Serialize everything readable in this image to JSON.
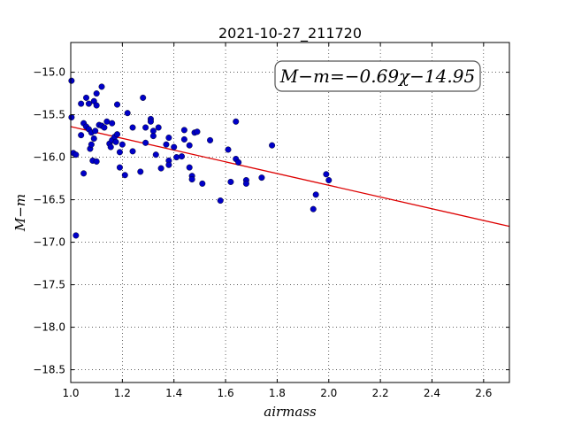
{
  "chart_data": {
    "type": "scatter",
    "title": "2021-10-27_211720",
    "xlabel": "airmass",
    "ylabel": "M−m",
    "annotation": "M−m=−0.69χ−14.95",
    "xlim": [
      1.0,
      2.7
    ],
    "ylim": [
      -18.65,
      -14.65
    ],
    "y_inverted": false,
    "grid": true,
    "x_ticks": [
      1.0,
      1.2,
      1.4,
      1.6,
      1.8,
      2.0,
      2.2,
      2.4,
      2.6
    ],
    "x_tick_labels": [
      "1.0",
      "1.2",
      "1.4",
      "1.6",
      "1.8",
      "2.0",
      "2.2",
      "2.4",
      "2.6"
    ],
    "y_ticks": [
      -15.0,
      -15.5,
      -16.0,
      -16.5,
      -17.0,
      -17.5,
      -18.0,
      -18.5
    ],
    "y_tick_labels": [
      "−15.0",
      "−15.5",
      "−16.0",
      "−16.5",
      "−17.0",
      "−17.5",
      "−18.0",
      "−18.5"
    ],
    "fit_line": {
      "slope": -0.69,
      "intercept": -14.95,
      "color": "#dd0000"
    },
    "point_color": "#0000c8",
    "points": [
      [
        1.003,
        -15.1
      ],
      [
        1.003,
        -15.53
      ],
      [
        1.01,
        -15.95
      ],
      [
        1.02,
        -15.97
      ],
      [
        1.02,
        -16.92
      ],
      [
        1.04,
        -15.37
      ],
      [
        1.04,
        -15.74
      ],
      [
        1.05,
        -15.6
      ],
      [
        1.05,
        -16.19
      ],
      [
        1.06,
        -15.3
      ],
      [
        1.06,
        -15.64
      ],
      [
        1.07,
        -15.37
      ],
      [
        1.07,
        -15.67
      ],
      [
        1.075,
        -15.9
      ],
      [
        1.08,
        -15.71
      ],
      [
        1.08,
        -15.85
      ],
      [
        1.085,
        -16.04
      ],
      [
        1.09,
        -15.34
      ],
      [
        1.09,
        -15.78
      ],
      [
        1.095,
        -15.69
      ],
      [
        1.1,
        -15.25
      ],
      [
        1.1,
        -15.39
      ],
      [
        1.1,
        -16.05
      ],
      [
        1.11,
        -15.62
      ],
      [
        1.12,
        -15.17
      ],
      [
        1.12,
        -15.63
      ],
      [
        1.13,
        -15.65
      ],
      [
        1.14,
        -15.58
      ],
      [
        1.15,
        -15.84
      ],
      [
        1.155,
        -15.88
      ],
      [
        1.16,
        -15.6
      ],
      [
        1.16,
        -15.8
      ],
      [
        1.17,
        -15.76
      ],
      [
        1.175,
        -15.82
      ],
      [
        1.18,
        -15.38
      ],
      [
        1.18,
        -15.73
      ],
      [
        1.19,
        -15.94
      ],
      [
        1.19,
        -16.12
      ],
      [
        1.2,
        -15.85
      ],
      [
        1.21,
        -16.21
      ],
      [
        1.22,
        -15.48
      ],
      [
        1.24,
        -15.65
      ],
      [
        1.24,
        -15.93
      ],
      [
        1.27,
        -16.17
      ],
      [
        1.28,
        -15.3
      ],
      [
        1.29,
        -15.65
      ],
      [
        1.29,
        -15.83
      ],
      [
        1.31,
        -15.55
      ],
      [
        1.31,
        -15.58
      ],
      [
        1.32,
        -15.69
      ],
      [
        1.32,
        -15.75
      ],
      [
        1.33,
        -15.97
      ],
      [
        1.34,
        -15.65
      ],
      [
        1.35,
        -16.13
      ],
      [
        1.37,
        -15.85
      ],
      [
        1.38,
        -15.77
      ],
      [
        1.38,
        -16.04
      ],
      [
        1.38,
        -16.09
      ],
      [
        1.4,
        -15.88
      ],
      [
        1.41,
        -16.0
      ],
      [
        1.43,
        -15.99
      ],
      [
        1.44,
        -15.79
      ],
      [
        1.44,
        -15.68
      ],
      [
        1.46,
        -15.86
      ],
      [
        1.46,
        -16.12
      ],
      [
        1.47,
        -16.22
      ],
      [
        1.47,
        -16.26
      ],
      [
        1.48,
        -15.71
      ],
      [
        1.49,
        -15.7
      ],
      [
        1.51,
        -16.31
      ],
      [
        1.54,
        -15.8
      ],
      [
        1.58,
        -16.51
      ],
      [
        1.61,
        -15.91
      ],
      [
        1.62,
        -16.29
      ],
      [
        1.64,
        -15.58
      ],
      [
        1.64,
        -16.02
      ],
      [
        1.65,
        -16.06
      ],
      [
        1.68,
        -16.27
      ],
      [
        1.68,
        -16.31
      ],
      [
        1.74,
        -16.24
      ],
      [
        1.78,
        -15.86
      ],
      [
        1.94,
        -16.61
      ],
      [
        1.95,
        -16.44
      ],
      [
        1.99,
        -16.2
      ],
      [
        2.0,
        -16.27
      ]
    ]
  }
}
